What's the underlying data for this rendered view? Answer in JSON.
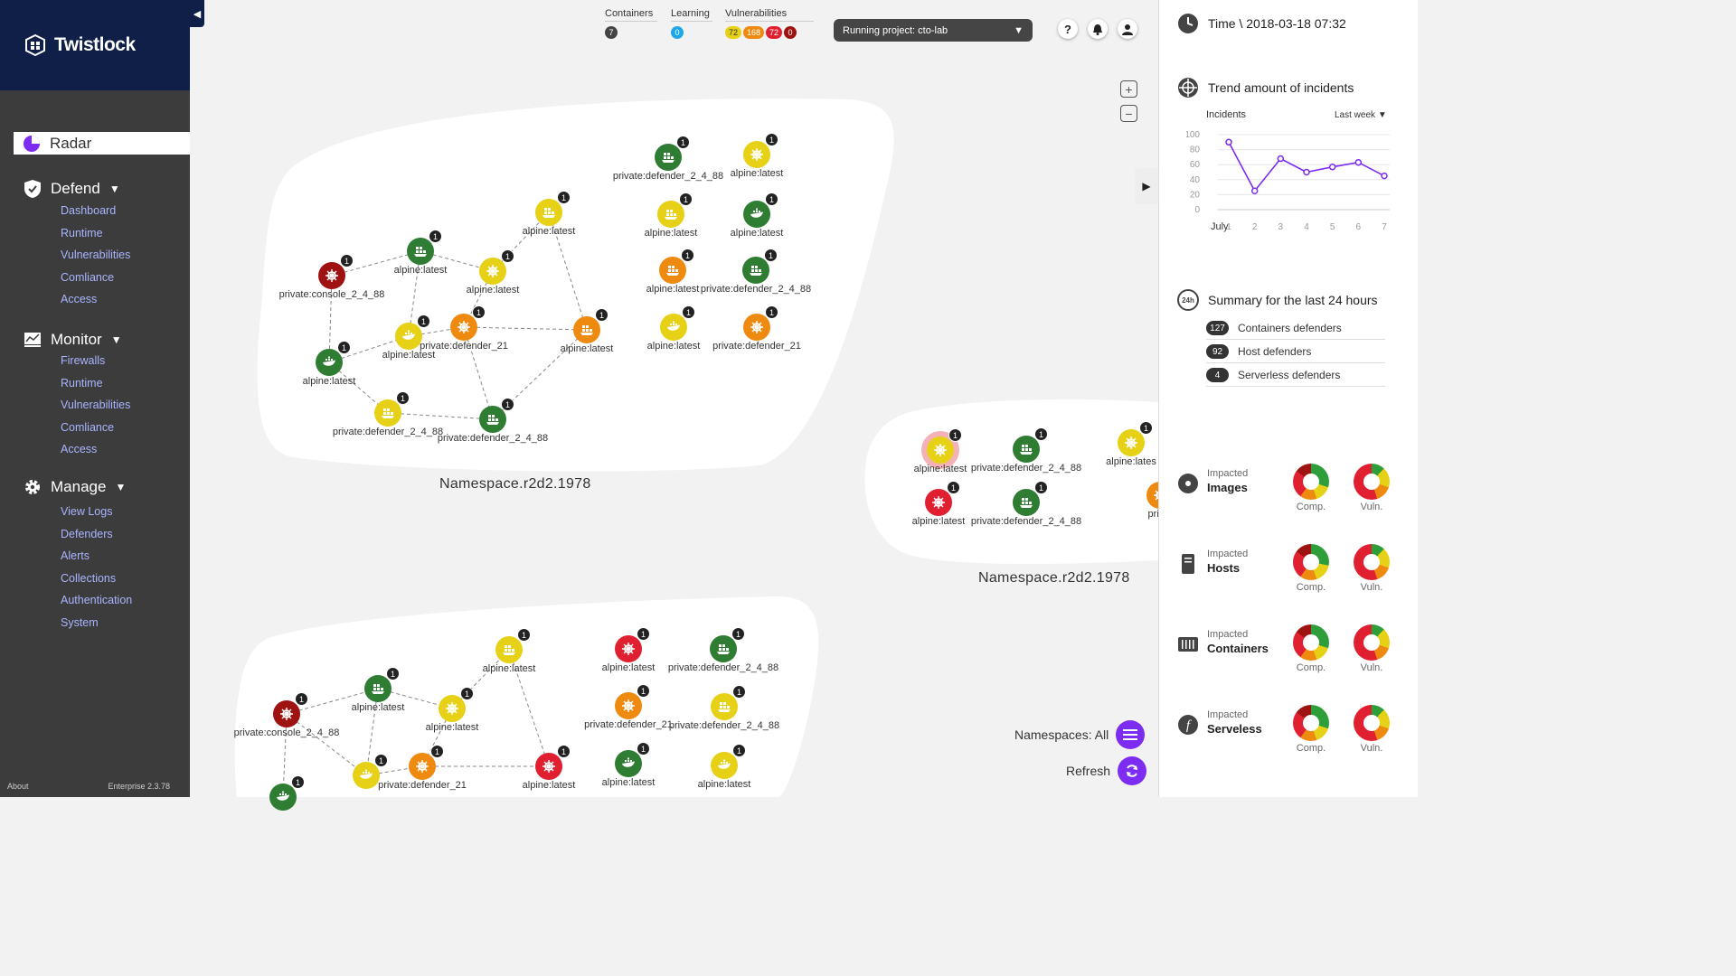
{
  "sidebar": {
    "brand": "Twistlock",
    "radar_label": "Radar",
    "sections": [
      {
        "label": "Defend",
        "items": [
          "Dashboard",
          "Runtime",
          "Vulnerabilities",
          "Comliance",
          "Access"
        ]
      },
      {
        "label": "Monitor",
        "items": [
          "Firewalls",
          "Runtime",
          "Vulnerabilities",
          "Comliance",
          "Access"
        ]
      },
      {
        "label": "Manage",
        "items": [
          "View Logs",
          "Defenders",
          "Alerts",
          "Collections",
          "Authentication",
          "System"
        ]
      }
    ],
    "about": "About",
    "version": "Enterprise 2.3.78"
  },
  "topbar": {
    "containers_label": "Containers",
    "containers_count": "7",
    "learning_label": "Learning",
    "learning_count": "0",
    "vulnerabilities_label": "Vulnerabilities",
    "vuln_counts": [
      "72",
      "168",
      "72",
      "0"
    ],
    "project": "Running project: cto-lab"
  },
  "canvas": {
    "ns1_name": "Namespace.r2d2.1978",
    "ns2_name": "Namespace.r2d2.1978",
    "namespaces_label": "Namespaces: All",
    "refresh_label": "Refresh",
    "nodes": [
      {
        "c": "dr",
        "i": "helm",
        "t": "private:console_2_4_88"
      },
      {
        "c": "g",
        "i": "ship",
        "t": "alpine:latest"
      },
      {
        "c": "y",
        "i": "ship",
        "t": "alpine:latest"
      },
      {
        "c": "y",
        "i": "helm",
        "t": "alpine:latest"
      },
      {
        "c": "g",
        "i": "whale",
        "t": "alpine:latest"
      },
      {
        "c": "y",
        "i": "whale",
        "t": "alpine:latest"
      },
      {
        "c": "o",
        "i": "helm",
        "t": "private:defender_21"
      },
      {
        "c": "o",
        "i": "ship",
        "t": "alpine:latest"
      },
      {
        "c": "y",
        "i": "ship",
        "t": "private:defender_2_4_88"
      },
      {
        "c": "g",
        "i": "ship",
        "t": "private:defender_2_4_88"
      },
      {
        "c": "g",
        "i": "ship",
        "t": "private:defender_2_4_88"
      },
      {
        "c": "y",
        "i": "helm",
        "t": "alpine:latest"
      },
      {
        "c": "y",
        "i": "ship",
        "t": "alpine:latest"
      },
      {
        "c": "g",
        "i": "whale",
        "t": "alpine:latest"
      },
      {
        "c": "o",
        "i": "ship",
        "t": "alpine:latest"
      },
      {
        "c": "g",
        "i": "ship",
        "t": "private:defender_2_4_88"
      },
      {
        "c": "y",
        "i": "whale",
        "t": "alpine:latest"
      },
      {
        "c": "o",
        "i": "helm",
        "t": "private:defender_21"
      },
      {
        "c": "y",
        "i": "helm",
        "t": "alpine:latest"
      },
      {
        "c": "g",
        "i": "ship",
        "t": "private:defender_2_4_88"
      },
      {
        "c": "y",
        "i": "helm",
        "t": "alpine:lates"
      },
      {
        "c": "r",
        "i": "helm",
        "t": "alpine:latest"
      },
      {
        "c": "g",
        "i": "ship",
        "t": "private:defender_2_4_88"
      },
      {
        "c": "o",
        "i": "helm",
        "t": "privat"
      },
      {
        "c": "dr",
        "i": "helm",
        "t": "private:console_2_4_88"
      },
      {
        "c": "g",
        "i": "ship",
        "t": "alpine:latest"
      },
      {
        "c": "y",
        "i": "ship",
        "t": "alpine:latest"
      },
      {
        "c": "y",
        "i": "helm",
        "t": "alpine:latest"
      },
      {
        "c": "y",
        "i": "whale",
        "t": ""
      },
      {
        "c": "o",
        "i": "helm",
        "t": "private:defender_21"
      },
      {
        "c": "r",
        "i": "helm",
        "t": "alpine:latest"
      },
      {
        "c": "g",
        "i": "whale",
        "t": ""
      },
      {
        "c": "r",
        "i": "helm",
        "t": "alpine:latest"
      },
      {
        "c": "g",
        "i": "ship",
        "t": "private:defender_2_4_88"
      },
      {
        "c": "o",
        "i": "helm",
        "t": "private:defender_21"
      },
      {
        "c": "y",
        "i": "ship",
        "t": "private:defender_2_4_88"
      },
      {
        "c": "g",
        "i": "whale",
        "t": "alpine:latest"
      },
      {
        "c": "y",
        "i": "whale",
        "t": "alpine:latest"
      }
    ],
    "badge": "1"
  },
  "panel": {
    "time_label": "Time \\ 2018-03-18 07:32",
    "trend_title": "Trend amount of incidents",
    "incidents_label": "Incidents",
    "range_label": "Last week",
    "summary_title": "Summary for the last 24 hours",
    "summary_badge": "24h",
    "summary": [
      {
        "count": "127",
        "label": "Containers defenders"
      },
      {
        "count": "92",
        "label": "Host defenders"
      },
      {
        "count": "4",
        "label": "Serverless defenders"
      }
    ],
    "impacted_prefix": "Impacted",
    "impacted": [
      {
        "label": "Images"
      },
      {
        "label": "Hosts"
      },
      {
        "label": "Containers"
      },
      {
        "label": "Serveless"
      }
    ],
    "comp_label": "Comp.",
    "vuln_label": "Vuln.",
    "line_color": "#7d2cf2"
  },
  "chart_data": {
    "type": "line",
    "title": "Trend amount of incidents",
    "ylabel": "Incidents",
    "xlabel": "July",
    "x": [
      1,
      2,
      3,
      4,
      5,
      6,
      7
    ],
    "series": [
      {
        "values": [
          90,
          25,
          68,
          50,
          57,
          63,
          45
        ]
      }
    ],
    "ylim": [
      0,
      100
    ],
    "yticks": [
      0,
      20,
      40,
      60,
      80,
      100
    ],
    "grid": true
  }
}
